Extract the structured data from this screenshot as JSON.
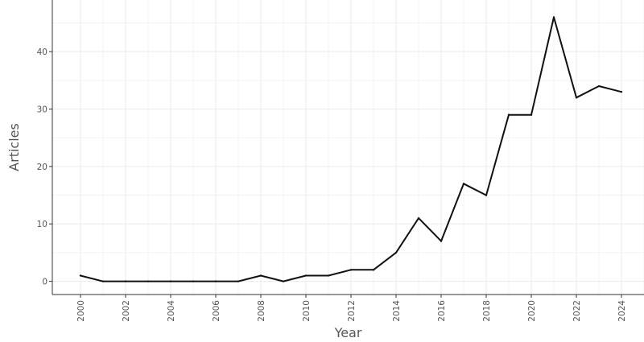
{
  "chart_data": {
    "type": "line",
    "xlabel": "Year",
    "ylabel": "Articles",
    "x": [
      2000,
      2001,
      2002,
      2003,
      2004,
      2005,
      2006,
      2007,
      2008,
      2009,
      2010,
      2011,
      2012,
      2013,
      2014,
      2015,
      2016,
      2017,
      2018,
      2019,
      2020,
      2021,
      2022,
      2023,
      2024
    ],
    "series": [
      {
        "values": [
          1,
          0,
          0,
          0,
          0,
          0,
          0,
          0,
          1,
          0,
          1,
          1,
          2,
          2,
          5,
          11,
          7,
          17,
          15,
          29,
          29,
          46,
          32,
          34,
          33
        ],
        "color": "#111111"
      }
    ],
    "xlim": [
      1998.75,
      2025
    ],
    "ylim": [
      -2.3,
      49
    ],
    "x_ticks": [
      "2000",
      "2002",
      "2004",
      "2006",
      "2008",
      "2010",
      "2012",
      "2014",
      "2016",
      "2018",
      "2020",
      "2022",
      "2024"
    ],
    "y_ticks": [
      "0",
      "10",
      "20",
      "30",
      "40"
    ],
    "grid": true,
    "legend": "none"
  }
}
